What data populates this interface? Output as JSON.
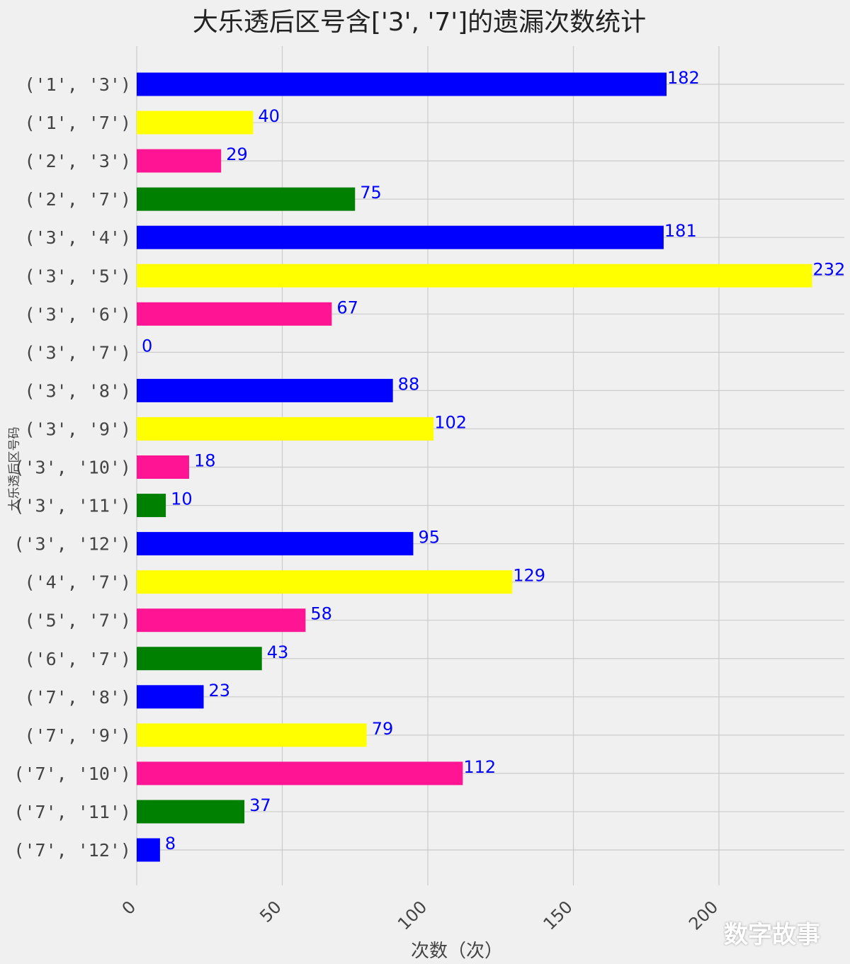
{
  "chart_data": {
    "type": "bar",
    "orientation": "horizontal",
    "title": "大乐透后区号含['3', '7']的遗漏次数统计",
    "xlabel": "次数（次）",
    "ylabel": "大乐透后区号码",
    "categories": [
      "('1', '3')",
      "('1', '7')",
      "('2', '3')",
      "('2', '7')",
      "('3', '4')",
      "('3', '5')",
      "('3', '6')",
      "('3', '7')",
      "('3', '8')",
      "('3', '9')",
      "('3', '10')",
      "('3', '11')",
      "('3', '12')",
      "('4', '7')",
      "('5', '7')",
      "('6', '7')",
      "('7', '8')",
      "('7', '9')",
      "('7', '10')",
      "('7', '11')",
      "('7', '12')"
    ],
    "values": [
      182,
      40,
      29,
      75,
      181,
      232,
      67,
      0,
      88,
      102,
      18,
      10,
      95,
      129,
      58,
      43,
      23,
      79,
      112,
      37,
      8
    ],
    "bar_colors": [
      "#0000ff",
      "#ffff00",
      "#ff1493",
      "#008000"
    ],
    "xticks": [
      "0",
      "50",
      "100",
      "150",
      "200"
    ],
    "xlim": [
      0,
      243
    ],
    "grid": true,
    "value_label_color": "#0000ff"
  },
  "watermark": "数字故事"
}
